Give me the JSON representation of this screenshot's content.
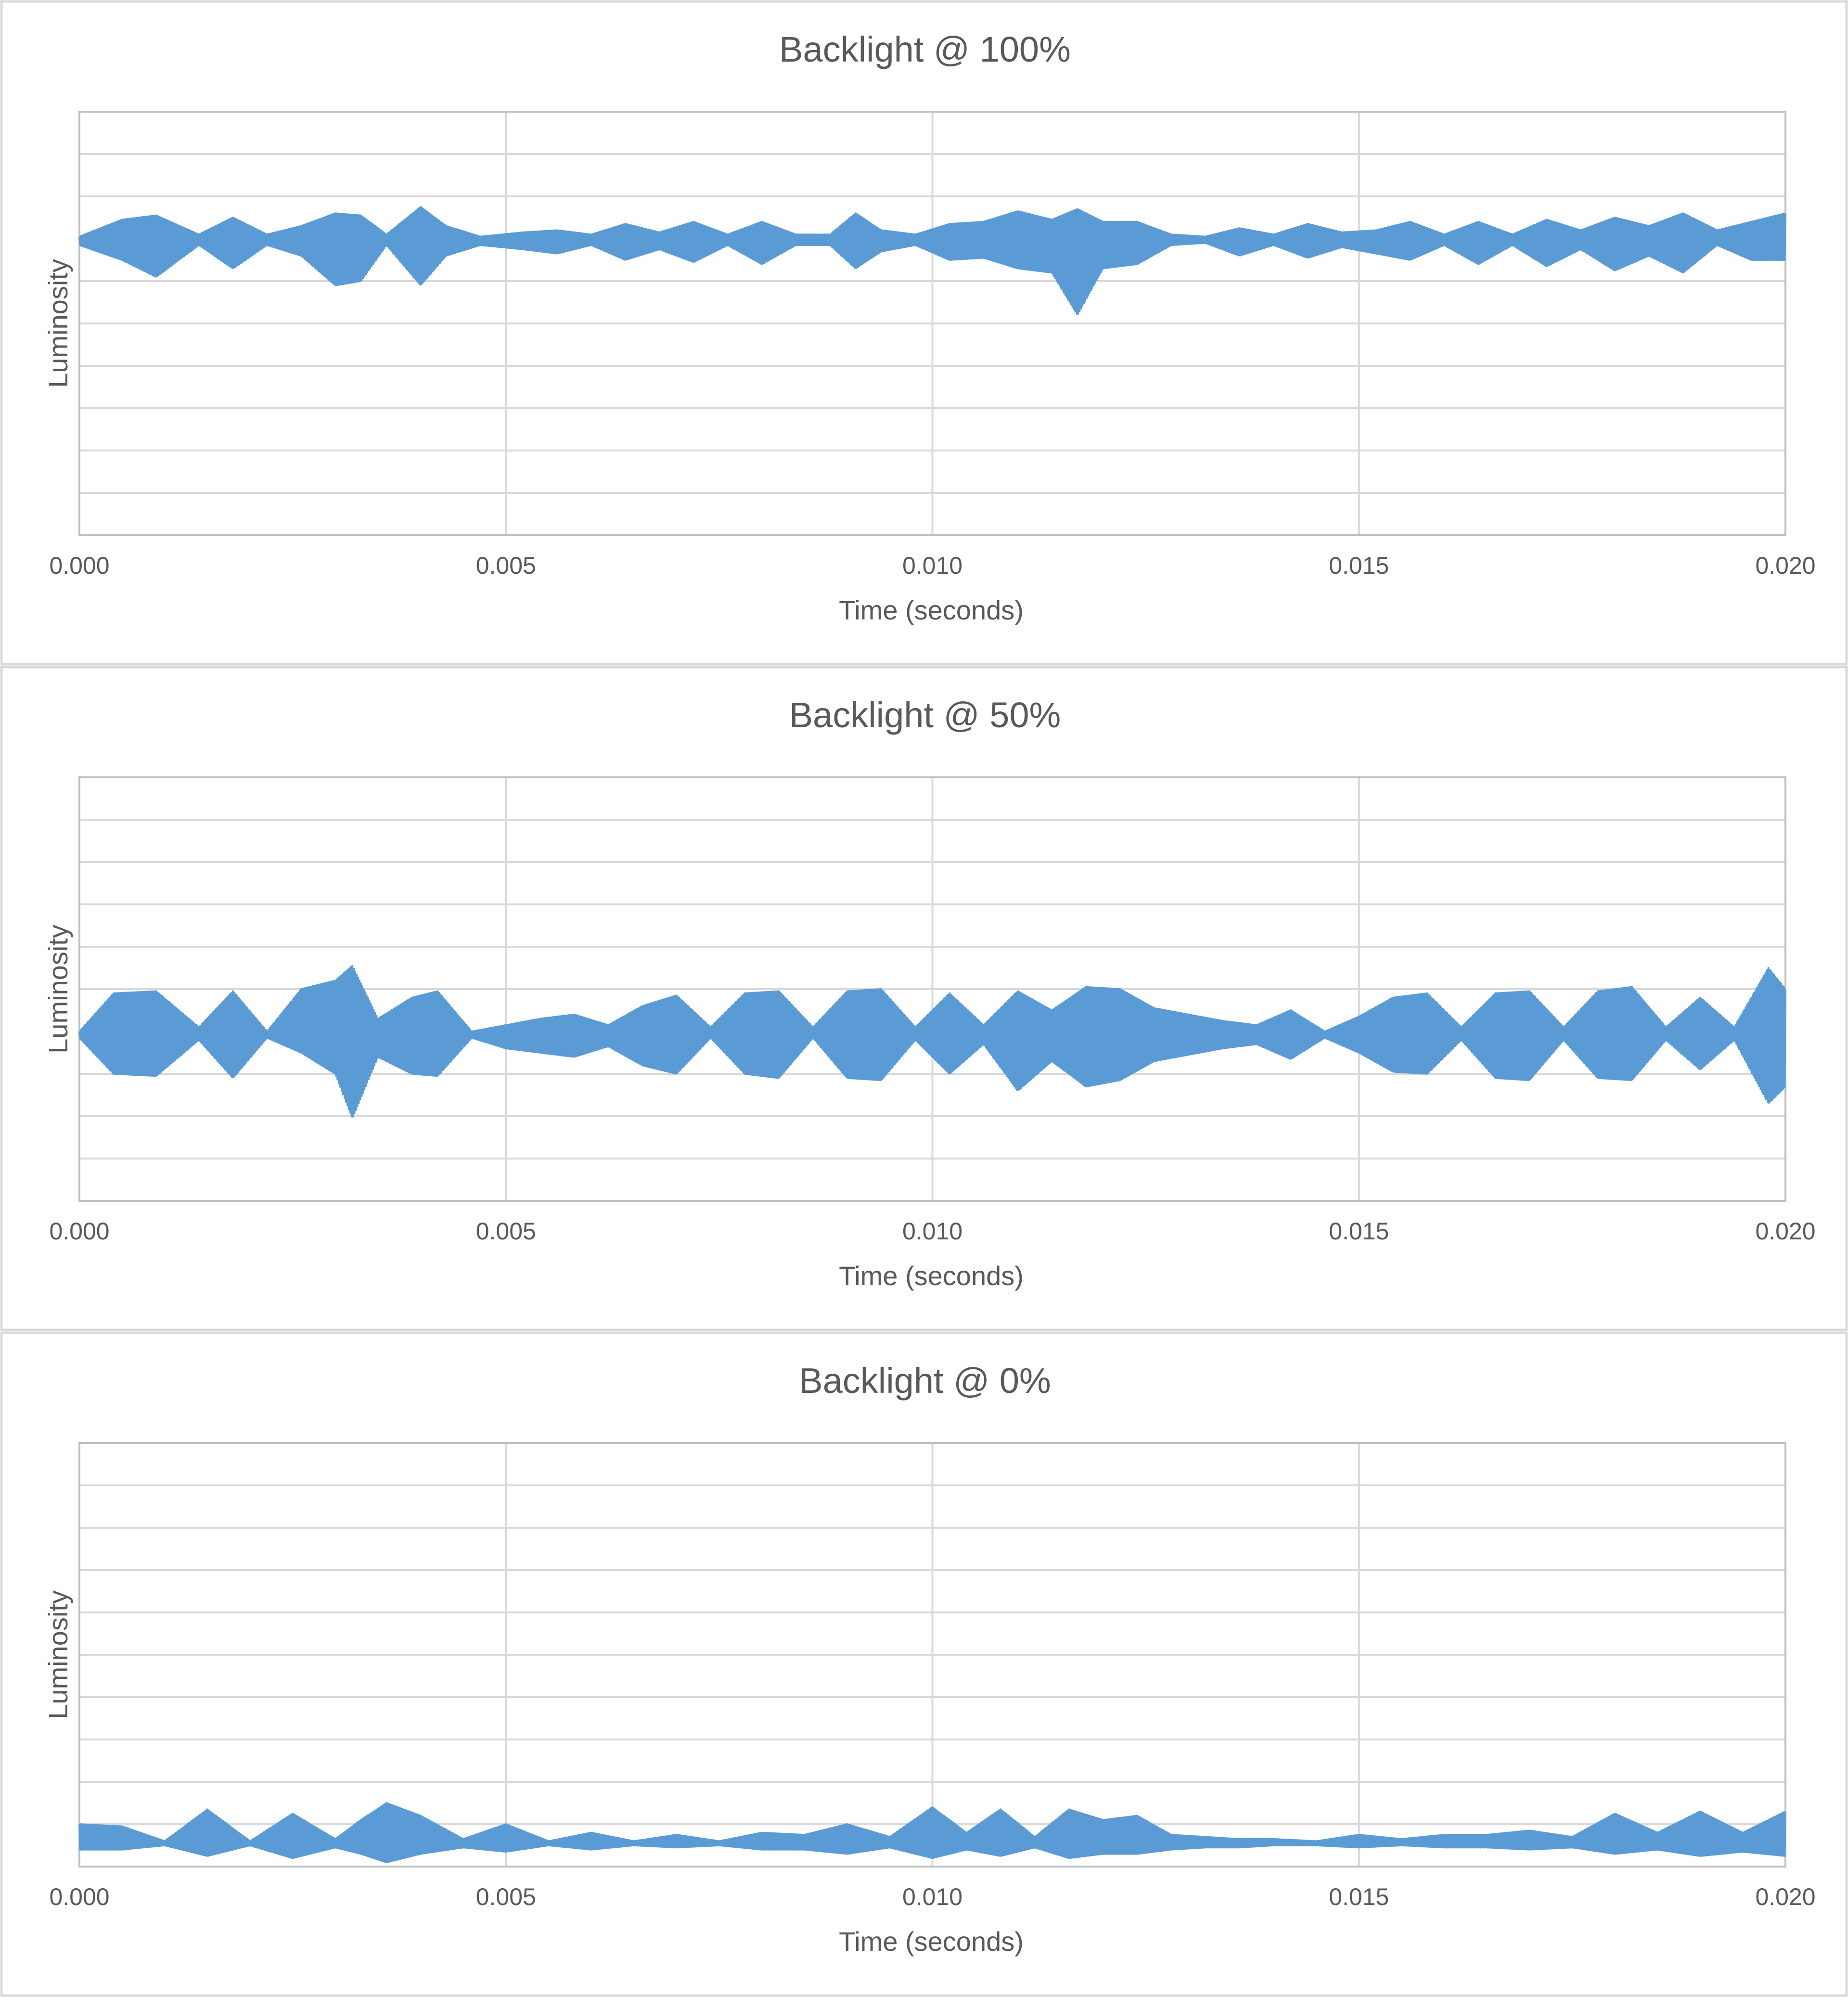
{
  "chart_data": [
    {
      "type": "line",
      "title": "Backlight @ 100%",
      "xlabel": "Time (seconds)",
      "ylabel": "Luminosity",
      "xlim": [
        0,
        0.02
      ],
      "ylim": [
        0,
        10
      ],
      "x_ticks": [
        "0.000",
        "0.005",
        "0.010",
        "0.015",
        "0.020"
      ],
      "y_gridlines": 10,
      "y_tick_labels_shown": false,
      "grid": true,
      "legend": "none",
      "color": "#5b9bd5",
      "series": [
        {
          "envelope": {
            "x": [
              0,
              0.0005,
              0.0009,
              0.0014,
              0.0018,
              0.0022,
              0.0026,
              0.003,
              0.0033,
              0.0036,
              0.004,
              0.0043,
              0.0047,
              0.0052,
              0.0056,
              0.006,
              0.0064,
              0.0068,
              0.0072,
              0.0076,
              0.008,
              0.0084,
              0.0088,
              0.0091,
              0.0094,
              0.0098,
              0.0102,
              0.0106,
              0.011,
              0.0114,
              0.0117,
              0.012,
              0.0124,
              0.0128,
              0.0132,
              0.0136,
              0.014,
              0.0144,
              0.0148,
              0.0152,
              0.0156,
              0.016,
              0.0164,
              0.0168,
              0.0172,
              0.0176,
              0.018,
              0.0184,
              0.0188,
              0.0192,
              0.0196,
              0.02
            ],
            "max": [
              7.05,
              7.45,
              7.55,
              7.1,
              7.5,
              7.1,
              7.3,
              7.6,
              7.55,
              7.1,
              7.75,
              7.3,
              7.05,
              7.15,
              7.2,
              7.1,
              7.35,
              7.15,
              7.4,
              7.1,
              7.4,
              7.1,
              7.1,
              7.6,
              7.2,
              7.1,
              7.35,
              7.4,
              7.65,
              7.45,
              7.7,
              7.4,
              7.4,
              7.1,
              7.05,
              7.25,
              7.1,
              7.35,
              7.15,
              7.2,
              7.4,
              7.1,
              7.4,
              7.1,
              7.45,
              7.2,
              7.5,
              7.3,
              7.6,
              7.2,
              7.4,
              7.6
            ],
            "min": [
              6.85,
              6.5,
              6.1,
              6.85,
              6.3,
              6.85,
              6.6,
              5.9,
              6.0,
              6.85,
              5.9,
              6.6,
              6.85,
              6.75,
              6.65,
              6.85,
              6.5,
              6.75,
              6.45,
              6.85,
              6.4,
              6.85,
              6.85,
              6.3,
              6.7,
              6.85,
              6.5,
              6.55,
              6.3,
              6.2,
              5.2,
              6.3,
              6.4,
              6.85,
              6.9,
              6.6,
              6.85,
              6.55,
              6.8,
              6.65,
              6.5,
              6.85,
              6.4,
              6.85,
              6.35,
              6.75,
              6.25,
              6.6,
              6.2,
              6.85,
              6.5,
              6.5
            ]
          }
        }
      ]
    },
    {
      "type": "line",
      "title": "Backlight @ 50%",
      "xlabel": "Time (seconds)",
      "ylabel": "Luminosity",
      "xlim": [
        0,
        0.02
      ],
      "ylim": [
        0,
        10
      ],
      "x_ticks": [
        "0.000",
        "0.005",
        "0.010",
        "0.015",
        "0.020"
      ],
      "y_gridlines": 10,
      "y_tick_labels_shown": false,
      "grid": true,
      "legend": "none",
      "color": "#5b9bd5",
      "series": [
        {
          "envelope": {
            "x": [
              0,
              0.0004,
              0.0009,
              0.0014,
              0.0018,
              0.0022,
              0.0026,
              0.003,
              0.0032,
              0.0035,
              0.0039,
              0.0042,
              0.0046,
              0.005,
              0.0054,
              0.0058,
              0.0062,
              0.0066,
              0.007,
              0.0074,
              0.0078,
              0.0082,
              0.0086,
              0.009,
              0.0094,
              0.0098,
              0.0102,
              0.0106,
              0.011,
              0.0114,
              0.0118,
              0.0122,
              0.0126,
              0.013,
              0.0134,
              0.0138,
              0.0142,
              0.0146,
              0.015,
              0.0154,
              0.0158,
              0.0162,
              0.0166,
              0.017,
              0.0174,
              0.0178,
              0.0182,
              0.0186,
              0.019,
              0.0194,
              0.0198,
              0.02
            ],
            "max": [
              4.0,
              4.9,
              4.95,
              4.1,
              4.95,
              4.0,
              5.0,
              5.2,
              5.55,
              4.3,
              4.8,
              4.95,
              4.0,
              4.15,
              4.3,
              4.4,
              4.15,
              4.6,
              4.85,
              4.1,
              4.9,
              4.95,
              4.1,
              4.95,
              5.0,
              4.1,
              4.9,
              4.15,
              4.95,
              4.5,
              5.05,
              5.0,
              4.55,
              4.4,
              4.25,
              4.15,
              4.5,
              4.0,
              4.35,
              4.8,
              4.9,
              4.1,
              4.9,
              4.95,
              4.1,
              4.95,
              5.05,
              4.1,
              4.8,
              4.1,
              5.5,
              5.0
            ],
            "min": [
              3.85,
              3.0,
              2.95,
              3.8,
              2.9,
              3.85,
              3.5,
              3.0,
              1.95,
              3.4,
              3.0,
              2.95,
              3.85,
              3.6,
              3.5,
              3.4,
              3.65,
              3.2,
              3.0,
              3.85,
              3.0,
              2.9,
              3.85,
              2.9,
              2.85,
              3.8,
              3.0,
              3.7,
              2.6,
              3.3,
              2.7,
              2.85,
              3.3,
              3.45,
              3.6,
              3.7,
              3.35,
              3.85,
              3.5,
              3.05,
              3.0,
              3.8,
              2.9,
              2.85,
              3.8,
              2.9,
              2.85,
              3.8,
              3.1,
              3.8,
              2.3,
              2.7
            ]
          }
        }
      ]
    },
    {
      "type": "line",
      "title": "Backlight @ 0%",
      "xlabel": "Time (seconds)",
      "ylabel": "Luminosity",
      "xlim": [
        0,
        0.02
      ],
      "ylim": [
        0,
        10
      ],
      "x_ticks": [
        "0.000",
        "0.005",
        "0.010",
        "0.015",
        "0.020"
      ],
      "y_gridlines": 10,
      "y_tick_labels_shown": false,
      "grid": true,
      "legend": "none",
      "color": "#5b9bd5",
      "series": [
        {
          "envelope": {
            "x": [
              0,
              0.0005,
              0.001,
              0.0015,
              0.002,
              0.0025,
              0.003,
              0.0033,
              0.0036,
              0.004,
              0.0045,
              0.005,
              0.0055,
              0.006,
              0.0065,
              0.007,
              0.0075,
              0.008,
              0.0085,
              0.009,
              0.0095,
              0.01,
              0.0104,
              0.0108,
              0.0112,
              0.0116,
              0.012,
              0.0124,
              0.0128,
              0.0132,
              0.0136,
              0.014,
              0.0145,
              0.015,
              0.0155,
              0.016,
              0.0165,
              0.017,
              0.0175,
              0.018,
              0.0185,
              0.019,
              0.0195,
              0.02
            ],
            "max": [
              1.0,
              0.95,
              0.6,
              1.35,
              0.6,
              1.25,
              0.65,
              1.1,
              1.5,
              1.2,
              0.65,
              1.0,
              0.6,
              0.8,
              0.6,
              0.75,
              0.6,
              0.8,
              0.75,
              1.0,
              0.7,
              1.4,
              0.8,
              1.35,
              0.7,
              1.35,
              1.1,
              1.2,
              0.75,
              0.7,
              0.65,
              0.65,
              0.6,
              0.75,
              0.65,
              0.75,
              0.75,
              0.85,
              0.7,
              1.25,
              0.8,
              1.3,
              0.8,
              1.3
            ],
            "min": [
              0.4,
              0.4,
              0.5,
              0.25,
              0.5,
              0.2,
              0.45,
              0.3,
              0.1,
              0.3,
              0.45,
              0.35,
              0.5,
              0.4,
              0.5,
              0.45,
              0.5,
              0.4,
              0.4,
              0.3,
              0.45,
              0.2,
              0.4,
              0.25,
              0.45,
              0.2,
              0.3,
              0.3,
              0.4,
              0.45,
              0.45,
              0.5,
              0.5,
              0.45,
              0.5,
              0.45,
              0.45,
              0.4,
              0.45,
              0.3,
              0.4,
              0.25,
              0.35,
              0.25
            ]
          }
        }
      ]
    }
  ]
}
